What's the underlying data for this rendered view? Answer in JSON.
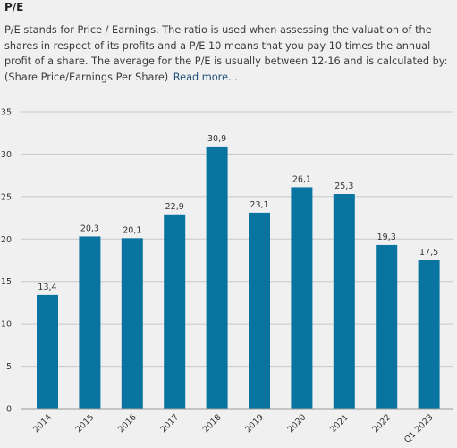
{
  "header": {
    "title": "P/E",
    "description": "P/E stands for Price / Earnings. The ratio is used when assessing the valuation of the shares in respect of its profits and a P/E 10 means that you pay 10 times the annual profit of a share. The average for the P/E is usually between 12-16 and is calculated by: (Share Price/Earnings Per Share)",
    "read_more": "Read more..."
  },
  "colors": {
    "bar": "#0a74a0",
    "grid": "#c8c8c8",
    "background": "#f0f0f0",
    "link": "#1f4e79"
  },
  "chart_data": {
    "type": "bar",
    "title": "",
    "xlabel": "",
    "ylabel": "",
    "ylim": [
      0,
      35
    ],
    "yticks": [
      0,
      5,
      10,
      15,
      20,
      25,
      30,
      35
    ],
    "grid": true,
    "categories": [
      "2014",
      "2015",
      "2016",
      "2017",
      "2018",
      "2019",
      "2020",
      "2021",
      "2022",
      "Q1 2023"
    ],
    "values": [
      13.4,
      20.3,
      20.1,
      22.9,
      30.9,
      23.1,
      26.1,
      25.3,
      19.3,
      17.5
    ],
    "value_labels": [
      "13,4",
      "20,3",
      "20,1",
      "22,9",
      "30,9",
      "23,1",
      "26,1",
      "25,3",
      "19,3",
      "17,5"
    ]
  }
}
